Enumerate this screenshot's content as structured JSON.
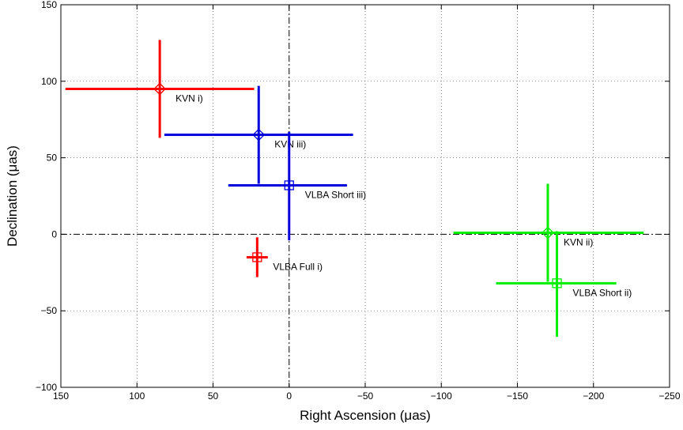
{
  "chart_data": {
    "type": "scatter",
    "title": "",
    "xlabel": "Right Ascension (μas)",
    "ylabel": "Declination (μas)",
    "xlim": [
      150,
      -250
    ],
    "ylim": [
      -100,
      150
    ],
    "x_reversed": true,
    "grid": true,
    "xticks": [
      150,
      100,
      50,
      0,
      -50,
      -100,
      -150,
      -200,
      -250
    ],
    "yticks": [
      -100,
      -50,
      0,
      50,
      100,
      150
    ],
    "xtick_labels": [
      "150",
      "100",
      "50",
      "0",
      "−50",
      "−100",
      "−150",
      "−200",
      "−250"
    ],
    "ytick_labels": [
      "−100",
      "−50",
      "0",
      "50",
      "100",
      "150"
    ],
    "points": [
      {
        "label": "KVN i)",
        "marker": "diamond",
        "color": "#ff0000",
        "x": 85,
        "y": 95,
        "x_min": 147,
        "x_max": 23,
        "y_min": 63,
        "y_max": 127
      },
      {
        "label": "VLBA Full i)",
        "marker": "square",
        "color": "#ff0000",
        "x": 21,
        "y": -15,
        "x_min": 28,
        "x_max": 14,
        "y_min": -28,
        "y_max": -2
      },
      {
        "label": "KVN ii)",
        "marker": "diamond",
        "color": "#00ee00",
        "x": -170,
        "y": 1,
        "x_min": -108,
        "x_max": -233,
        "y_min": -31,
        "y_max": 33
      },
      {
        "label": "VLBA Short ii)",
        "marker": "square",
        "color": "#00ee00",
        "x": -176,
        "y": -32,
        "x_min": -136,
        "x_max": -215,
        "y_min": -67,
        "y_max": 2
      },
      {
        "label": "KVN iii)",
        "marker": "diamond",
        "color": "#0000dd",
        "x": 20,
        "y": 65,
        "x_min": 82,
        "x_max": -42,
        "y_min": 33,
        "y_max": 97
      },
      {
        "label": "VLBA Short iii)",
        "marker": "square",
        "color": "#0000dd",
        "x": 0,
        "y": 32,
        "x_min": 40,
        "x_max": -38,
        "y_min": -4,
        "y_max": 67
      }
    ]
  }
}
